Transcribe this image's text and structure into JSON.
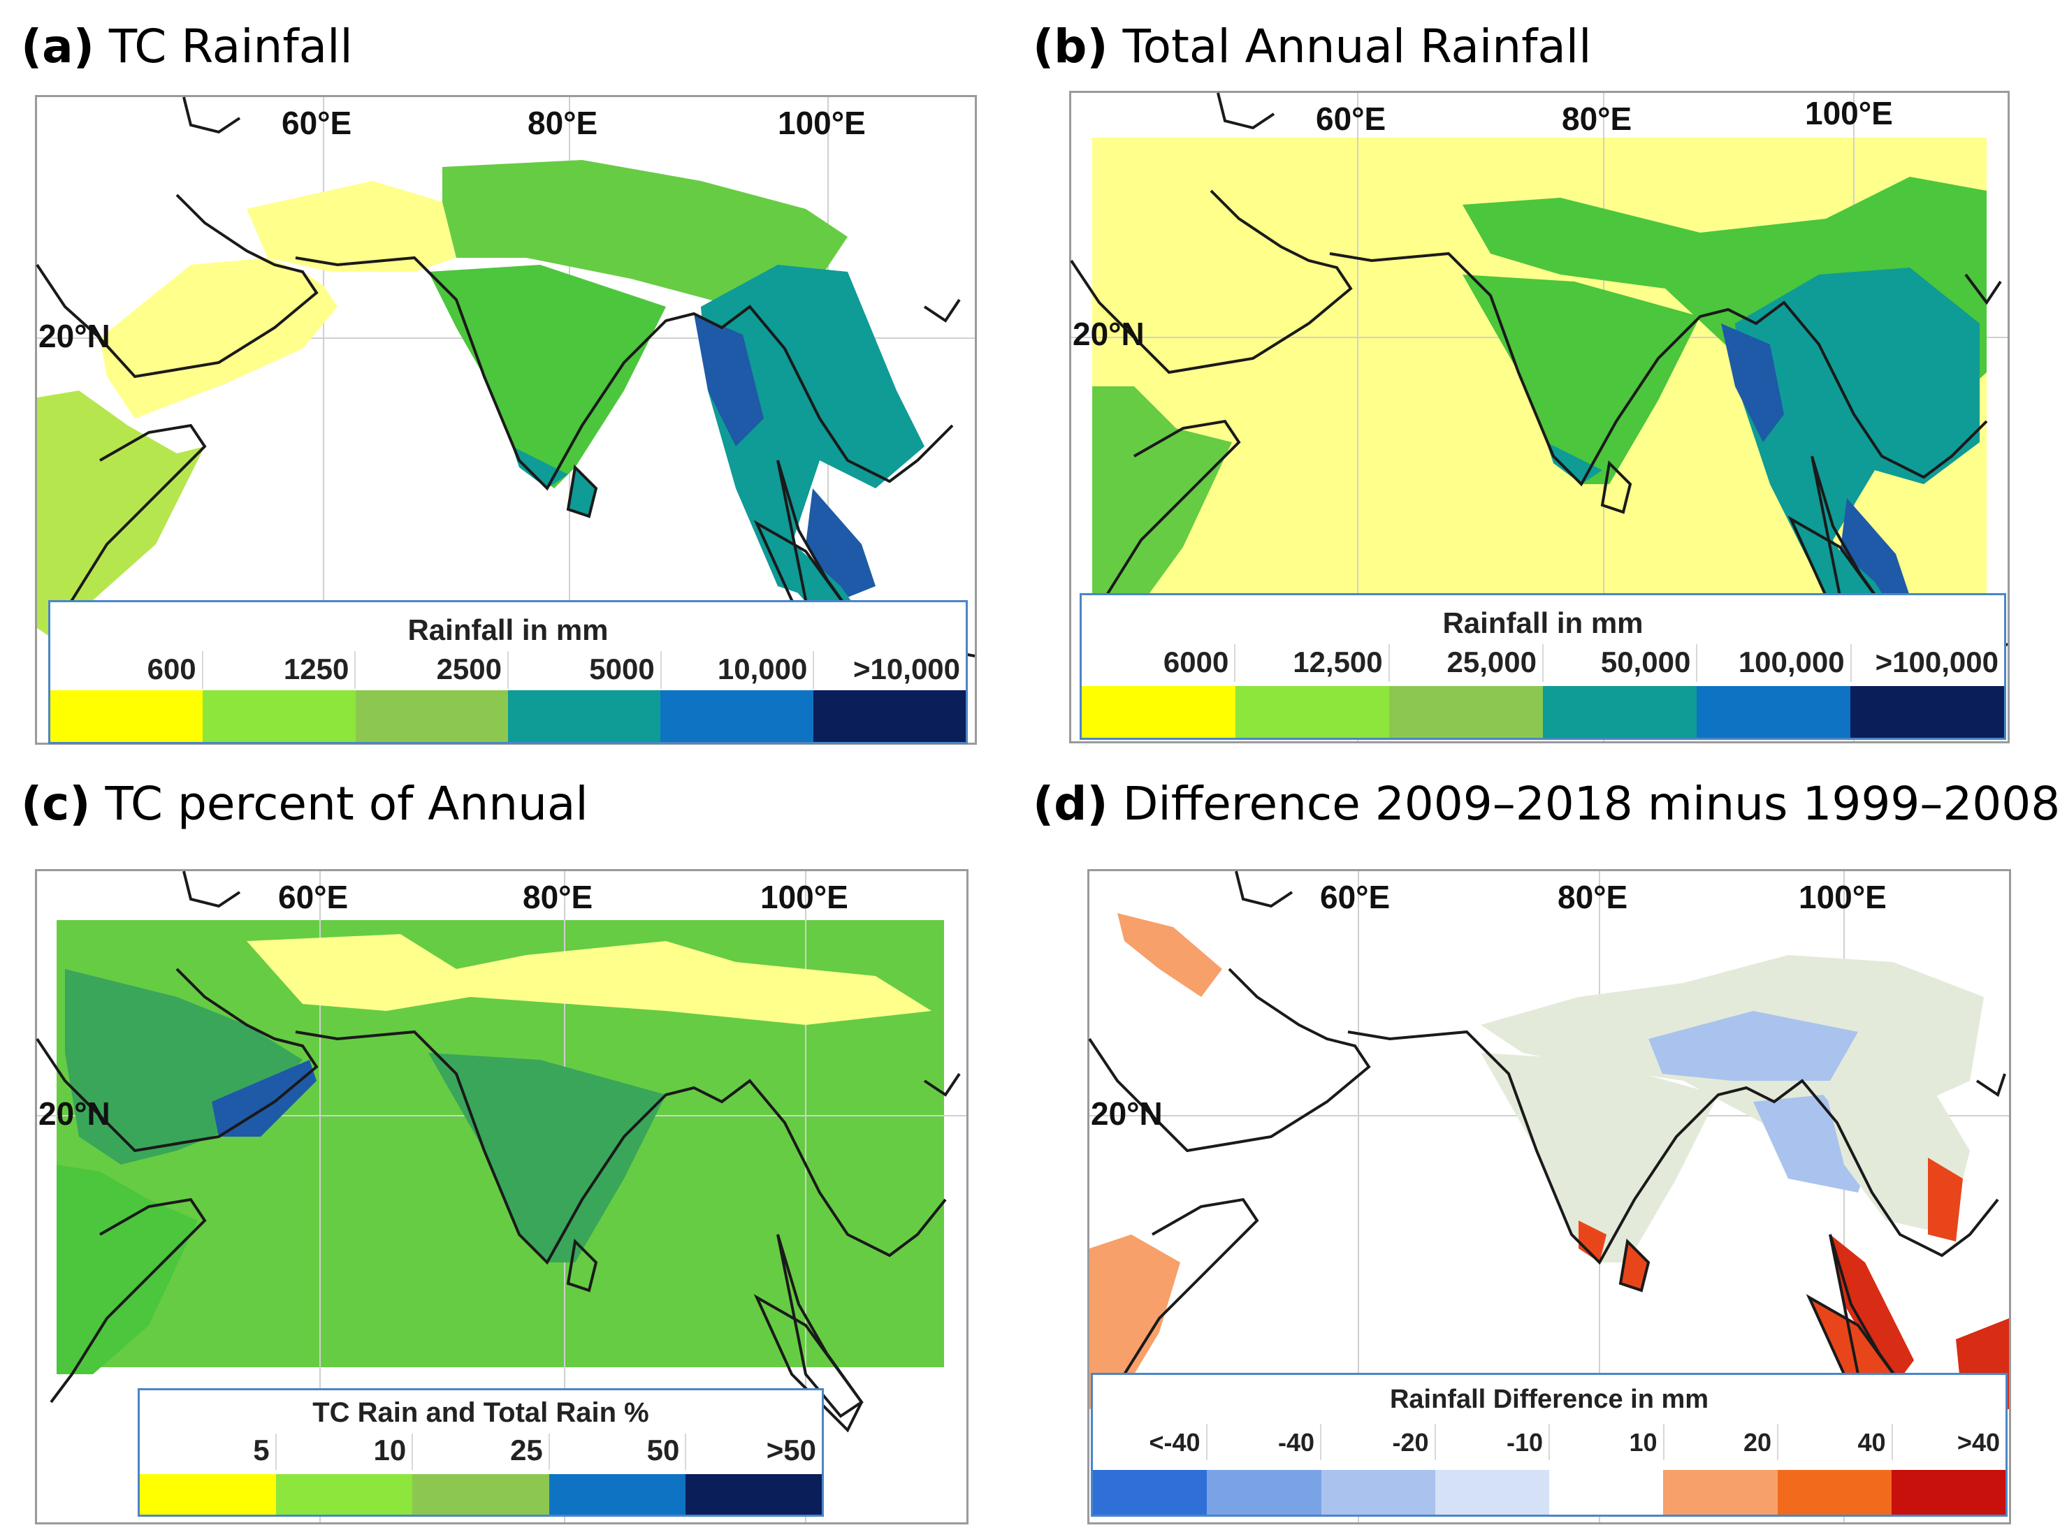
{
  "panels": {
    "a": {
      "letter": "(a)",
      "title": "TC Rainfall",
      "lon_labels": [
        "60°E",
        "80°E",
        "100°E"
      ],
      "lat_label": "20°N",
      "legend": {
        "title": "Rainfall in mm",
        "labels": [
          "600",
          "1250",
          "2500",
          "5000",
          "10,000",
          ">10,000"
        ],
        "colors": [
          "#ffff00",
          "#8ce63c",
          "#8cc850",
          "#0f9b96",
          "#0f73c3",
          "#0a1e5a"
        ]
      }
    },
    "b": {
      "letter": "(b)",
      "title": "Total Annual Rainfall",
      "lon_labels": [
        "60°E",
        "80°E",
        "100°E"
      ],
      "lat_label": "20°N",
      "legend": {
        "title": "Rainfall in mm",
        "labels": [
          "6000",
          "12,500",
          "25,000",
          "50,000",
          "100,000",
          ">100,000"
        ],
        "colors": [
          "#ffff00",
          "#8ce63c",
          "#8cc850",
          "#0f9b96",
          "#0f73c3",
          "#0a1e5a"
        ]
      }
    },
    "c": {
      "letter": "(c)",
      "title": "TC percent of Annual",
      "lon_labels": [
        "60°E",
        "80°E",
        "100°E"
      ],
      "lat_label": "20°N",
      "legend": {
        "title": "TC Rain and Total Rain %",
        "labels": [
          "5",
          "10",
          "25",
          "50",
          ">50"
        ],
        "colors": [
          "#ffff00",
          "#8ce63c",
          "#8cc850",
          "#0f73c3",
          "#0a1e5a"
        ]
      }
    },
    "d": {
      "letter": "(d)",
      "title": "Difference 2009–2018 minus 1999–2008",
      "lon_labels": [
        "60°E",
        "80°E",
        "100°E"
      ],
      "lat_label": "20°N",
      "legend": {
        "title": "Rainfall Difference in mm",
        "labels": [
          "<-40",
          "-40",
          "-20",
          "-10",
          "10",
          "20",
          "40",
          ">40"
        ],
        "colors": [
          "#2f6fd8",
          "#7aa3e6",
          "#a9c3ee",
          "#d5e1f6",
          "#ffffff",
          "#f7a06a",
          "#f26b1c",
          "#c8100c"
        ]
      }
    }
  }
}
